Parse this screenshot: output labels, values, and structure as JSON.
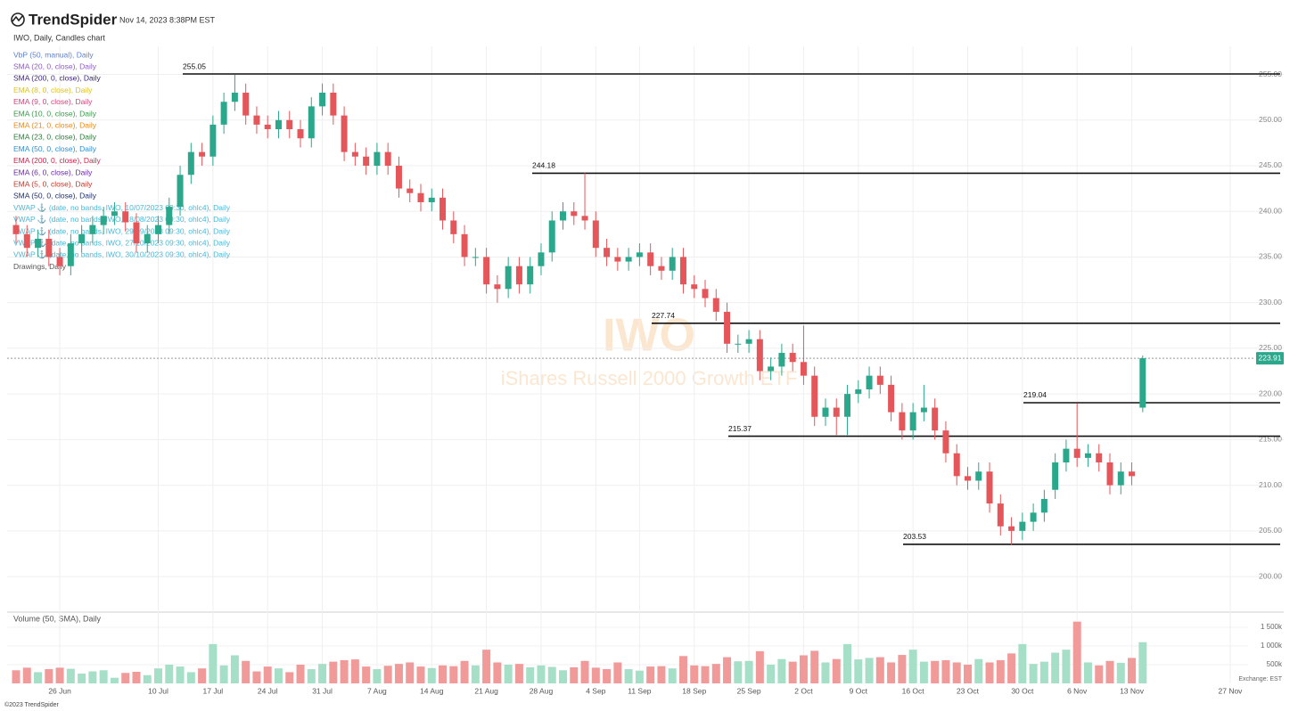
{
  "chart_data": {
    "type": "candlestick",
    "brand": "TrendSpider",
    "timestamp": "Nov 14, 2023 8:38PM EST",
    "title": "IWO, Daily, Candles chart",
    "indicators": [
      {
        "name": "VbP (50, manual), Daily",
        "color": "#5b7fd6"
      },
      {
        "name": "SMA (20, 0, close), Daily",
        "color": "#8e5bc4"
      },
      {
        "name": "SMA (200, 0, close), Daily",
        "color": "#3b1f7a"
      },
      {
        "name": "EMA (8, 0, close), Daily",
        "color": "#e0c21a"
      },
      {
        "name": "EMA (9, 0, close), Daily",
        "color": "#d0457a"
      },
      {
        "name": "EMA (10, 0, close), Daily",
        "color": "#3a9a4a"
      },
      {
        "name": "EMA (21, 0, close), Daily",
        "color": "#e8891a"
      },
      {
        "name": "EMA (23, 0, close), Daily",
        "color": "#2d7a3a"
      },
      {
        "name": "EMA (50, 0, close), Daily",
        "color": "#2b8fd0"
      },
      {
        "name": "EMA (200, 0, close), Daily",
        "color": "#d21f4a"
      },
      {
        "name": "EMA (6, 0, close), Daily",
        "color": "#6a2aa8"
      },
      {
        "name": "EMA (5, 0, close), Daily",
        "color": "#c0392b"
      },
      {
        "name": "SMA (50, 0, close), Daily",
        "color": "#1f2f6a"
      },
      {
        "name": "VWAP ⚓ (date, no bands, IWO, 10/07/2023 09:30, ohlc4), Daily",
        "color": "#4ab8d8"
      },
      {
        "name": "VWAP ⚓ (date, no bands, IWO, 18/08/2023 09:30, ohlc4), Daily",
        "color": "#4ab8d8"
      },
      {
        "name": "VWAP ⚓ (date, no bands, IWO, 29/09/2023 09:30, ohlc4), Daily",
        "color": "#4ab8d8"
      },
      {
        "name": "VWAP ⚓ (date, no bands, IWO, 27/10/2023 09:30, ohlc4), Daily",
        "color": "#4ab8d8"
      },
      {
        "name": "VWAP ⚓ (date, no bands, IWO, 30/10/2023 09:30, ohlc4), Daily",
        "color": "#4ab8d8"
      },
      {
        "name": "Drawings, Daily",
        "color": "#555555"
      }
    ],
    "watermark_symbol": "IWO",
    "watermark_name": "iShares Russell 2000 Growth ETF",
    "categories": [
      null,
      null,
      null,
      null,
      "26 Jun",
      null,
      null,
      null,
      null,
      null,
      null,
      null,
      null,
      "10 Jul",
      null,
      null,
      null,
      null,
      "17 Jul",
      null,
      null,
      null,
      null,
      "24 Jul",
      null,
      null,
      null,
      null,
      "31 Jul",
      null,
      null,
      null,
      null,
      "7 Aug",
      null,
      null,
      null,
      null,
      "14 Aug",
      null,
      null,
      null,
      null,
      "21 Aug",
      null,
      null,
      null,
      null,
      "28 Aug",
      null,
      null,
      null,
      null,
      "4 Sep",
      null,
      null,
      null,
      "11 Sep",
      null,
      null,
      null,
      null,
      "18 Sep",
      null,
      null,
      null,
      null,
      "25 Sep",
      null,
      null,
      null,
      null,
      "2 Oct",
      null,
      null,
      null,
      null,
      "9 Oct",
      null,
      null,
      null,
      null,
      "16 Oct",
      null,
      null,
      null,
      null,
      "23 Oct",
      null,
      null,
      null,
      null,
      "30 Oct",
      null,
      null,
      null,
      null,
      "6 Nov",
      null,
      null,
      null,
      null,
      "13 Nov",
      null,
      null,
      null,
      null,
      null,
      null,
      null,
      null,
      "27 Nov"
    ],
    "open": [
      238.5,
      237.5,
      236.0,
      237.0,
      235.0,
      234.0,
      236.5,
      237.5,
      238.5,
      239.5,
      240.0,
      238.8,
      236.5,
      237.5,
      238.5,
      240.5,
      244.0,
      246.5,
      246.0,
      249.5,
      252.0,
      253.0,
      250.5,
      249.5,
      249.0,
      250.0,
      249.0,
      248.0,
      251.5,
      253.0,
      250.5,
      246.5,
      246.0,
      245.0,
      246.5,
      245.0,
      242.5,
      242.0,
      241.0,
      241.5,
      239.0,
      237.5,
      235.0,
      235.0,
      232.0,
      231.5,
      234.0,
      232.0,
      234.0,
      235.5,
      239.0,
      240.0,
      239.5,
      239.0,
      236.0,
      235.0,
      234.5,
      235.0,
      235.5,
      234.0,
      233.5,
      235.0,
      232.0,
      231.5,
      230.5,
      229.0,
      225.5,
      225.5,
      226.0,
      222.5,
      223.0,
      224.5,
      223.5,
      222.0,
      217.5,
      218.5,
      217.5,
      220.0,
      220.5,
      222.0,
      221.0,
      218.0,
      216.0,
      218.0,
      218.5,
      216.0,
      213.5,
      211.0,
      210.5,
      211.5,
      208.0,
      205.5,
      205.0,
      206.0,
      207.0,
      209.5,
      212.5,
      214.0,
      213.0,
      213.5,
      212.5,
      210.0,
      211.5,
      218.5,
      null,
      null,
      null,
      null,
      null,
      null,
      null,
      null
    ],
    "high": [
      239.5,
      238.5,
      238,
      238,
      236,
      237.5,
      238.5,
      239.5,
      240.5,
      241,
      241,
      239.8,
      238.5,
      239.5,
      241.5,
      245,
      247.5,
      247.5,
      250.5,
      253,
      255,
      254,
      251.5,
      250.5,
      251,
      251,
      250,
      252.5,
      254,
      254,
      251.5,
      247.5,
      247,
      247.5,
      247.5,
      246,
      243.5,
      243,
      242.5,
      242.5,
      240,
      238.5,
      236,
      236,
      233,
      235,
      235,
      235,
      236.5,
      240,
      241,
      241,
      244.2,
      240,
      237,
      236,
      236,
      236.5,
      236.5,
      235,
      236,
      236,
      233,
      232.5,
      231.5,
      230,
      226.5,
      227,
      227,
      224,
      225.5,
      225.5,
      227.5,
      223,
      219.5,
      219.5,
      221,
      221.5,
      223,
      223,
      222,
      219,
      219,
      221,
      219.5,
      217,
      214.5,
      212,
      212.5,
      212.5,
      209,
      206.5,
      207,
      208,
      209.5,
      213.5,
      215,
      219,
      214.5,
      214.5,
      213.5,
      212.5,
      212.5,
      224.2,
      null,
      null,
      null,
      null,
      null,
      null,
      null,
      null
    ],
    "low": [
      236.5,
      235,
      235,
      234,
      233,
      233,
      235.5,
      236.5,
      237.5,
      238.5,
      237.8,
      235.5,
      235.5,
      236.5,
      237.5,
      239.5,
      243,
      245,
      245,
      248.5,
      251,
      249.5,
      248.5,
      248,
      248,
      248,
      247,
      247,
      250.5,
      249.5,
      245.5,
      245,
      244,
      244,
      244,
      241.5,
      241,
      240,
      240,
      238,
      236.5,
      234,
      234,
      231,
      230,
      230.5,
      231,
      231,
      233,
      234.5,
      238,
      238.5,
      238,
      235,
      234,
      233.5,
      233.5,
      234,
      233,
      232.5,
      232.5,
      231,
      230.5,
      229.5,
      228,
      224.5,
      224.5,
      224.5,
      221.5,
      221.5,
      222,
      222.5,
      221,
      216.5,
      216.5,
      215.5,
      215.5,
      219,
      219.5,
      220,
      217,
      215,
      215,
      217,
      215,
      212.5,
      210,
      209.5,
      209.5,
      207,
      204.5,
      203.5,
      204,
      205,
      206,
      208.5,
      211.5,
      212,
      212,
      211.5,
      209,
      209,
      210,
      218,
      null,
      null,
      null,
      null,
      null,
      null,
      null,
      null
    ],
    "close": [
      237.5,
      236,
      237,
      235,
      234,
      236.5,
      237.5,
      238.5,
      239.5,
      240,
      238.8,
      236.5,
      237.5,
      238.5,
      240.5,
      244,
      246.5,
      246,
      249.5,
      252,
      253,
      250.5,
      249.5,
      249,
      250,
      249,
      248,
      251.5,
      253,
      250.5,
      246.5,
      246,
      245,
      246.5,
      245,
      242.5,
      242,
      241,
      241.5,
      239,
      237.5,
      235,
      235,
      232,
      231.5,
      234,
      232,
      234,
      235.5,
      239,
      240,
      239.5,
      239,
      236,
      235,
      234.5,
      235,
      235.5,
      234,
      233.5,
      235,
      232,
      231.5,
      230.5,
      229,
      225.5,
      225.5,
      226,
      222.5,
      223,
      224.5,
      223.5,
      222,
      217.5,
      218.5,
      217.5,
      220,
      220.5,
      222,
      221,
      218,
      216,
      218,
      218.5,
      216,
      213.5,
      211,
      210.5,
      211.5,
      208,
      205.5,
      205,
      206,
      207,
      208.5,
      212.5,
      214,
      213,
      213.5,
      212.5,
      210,
      211.5,
      211,
      223.91,
      null,
      null,
      null,
      null,
      null,
      null,
      null,
      null
    ],
    "volume": [
      350000,
      420000,
      300000,
      380000,
      420000,
      390000,
      260000,
      320000,
      350000,
      150000,
      280000,
      310000,
      220000,
      400000,
      500000,
      450000,
      300000,
      400000,
      1050000,
      480000,
      750000,
      600000,
      320000,
      450000,
      400000,
      300000,
      500000,
      380000,
      520000,
      580000,
      620000,
      640000,
      450000,
      380000,
      470000,
      520000,
      560000,
      450000,
      410000,
      480000,
      460000,
      600000,
      480000,
      900000,
      560000,
      500000,
      520000,
      430000,
      480000,
      440000,
      350000,
      430000,
      600000,
      420000,
      380000,
      560000,
      380000,
      340000,
      450000,
      460000,
      400000,
      730000,
      480000,
      460000,
      520000,
      700000,
      590000,
      600000,
      860000,
      500000,
      650000,
      580000,
      750000,
      870000,
      560000,
      650000,
      1050000,
      640000,
      680000,
      700000,
      560000,
      760000,
      900000,
      580000,
      600000,
      620000,
      560000,
      500000,
      650000,
      560000,
      620000,
      800000,
      1050000,
      520000,
      580000,
      820000,
      900000,
      1650000,
      560000,
      480000,
      600000,
      550000,
      680000,
      1100000,
      null,
      null,
      null,
      null,
      null,
      null,
      null,
      null
    ],
    "up_color": "#2ba88c",
    "down_color": "#e5565b",
    "up_volume_color": "#a6dfc8",
    "down_volume_color": "#f19a9a",
    "ylim": [
      196.3,
      257.1
    ],
    "yticks": [
      {
        "value": 200,
        "label": "200.00"
      },
      {
        "value": 205,
        "label": "205.00"
      },
      {
        "value": 210,
        "label": "210.00"
      },
      {
        "value": 215,
        "label": "215.00"
      },
      {
        "value": 220,
        "label": "220.00"
      },
      {
        "value": 225,
        "label": "225.00"
      },
      {
        "value": 230,
        "label": "230.00"
      },
      {
        "value": 235,
        "label": "235.00"
      },
      {
        "value": 240,
        "label": "240.00"
      },
      {
        "value": 245,
        "label": "245.00"
      },
      {
        "value": 250,
        "label": "250.00"
      },
      {
        "value": 255,
        "label": "255.00"
      }
    ],
    "levels": [
      255.05,
      244.18,
      227.74,
      219.04,
      215.37,
      203.53
    ],
    "last_price": 223.91,
    "volume_title": "Volume (50, SMA), Daily",
    "vlim": [
      0,
      1880000
    ],
    "vticks": [
      {
        "value": 500000,
        "label": "500k"
      },
      {
        "value": 1000000,
        "label": "1 000k"
      },
      {
        "value": 1500000,
        "label": "1 500k"
      }
    ],
    "grid": true,
    "exchange": "Exchange: EST",
    "copyright": "©2023 TrendSpider"
  }
}
